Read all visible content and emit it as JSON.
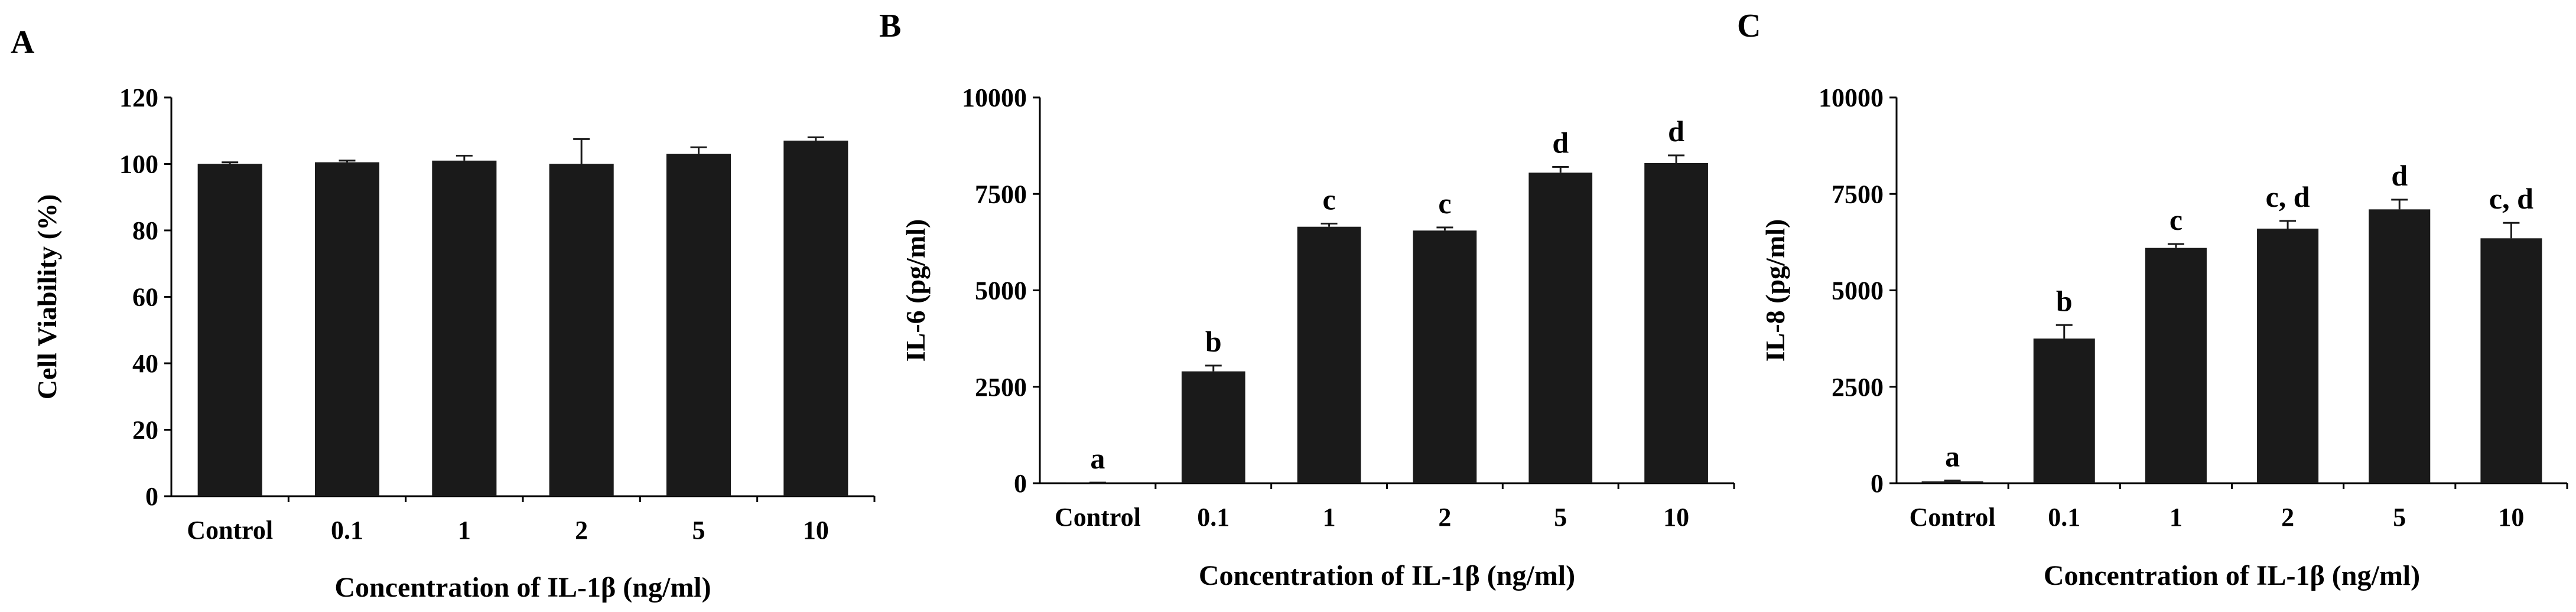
{
  "chart_data": [
    {
      "type": "bar",
      "panel": "A",
      "title": "",
      "xlabel": "Concentration of IL-1β (ng/ml)",
      "ylabel": "Cell Viability (%)",
      "ylim": [
        0,
        120
      ],
      "yticks": [
        "0",
        "20",
        "40",
        "60",
        "80",
        "100",
        "120"
      ],
      "categories": [
        "Control",
        "0.1",
        "1",
        "2",
        "5",
        "10"
      ],
      "values": [
        100,
        100.5,
        101,
        100,
        103,
        107
      ],
      "errors": [
        0.5,
        0.5,
        1.5,
        7.5,
        2,
        1
      ],
      "bar_color": "#1a1a1a",
      "grid": false
    },
    {
      "type": "bar",
      "panel": "B",
      "title": "",
      "xlabel": "Concentration of IL-1β (ng/ml)",
      "ylabel": "IL-6 (pg/ml)",
      "ylim": [
        0,
        10000
      ],
      "yticks": [
        "0",
        "2500",
        "5000",
        "7500",
        "10000"
      ],
      "categories": [
        "Control",
        "0.1",
        "1",
        "2",
        "5",
        "10"
      ],
      "values": [
        10,
        2900,
        6650,
        6550,
        8050,
        8300
      ],
      "errors": [
        5,
        150,
        80,
        80,
        150,
        200
      ],
      "significance": [
        "a",
        "b",
        "c",
        "c",
        "d",
        "d"
      ],
      "bar_color": "#1a1a1a",
      "grid": false
    },
    {
      "type": "bar",
      "panel": "C",
      "title": "",
      "xlabel": "Concentration of IL-1β (ng/ml)",
      "ylabel": "IL-8 (pg/ml)",
      "ylim": [
        0,
        10000
      ],
      "yticks": [
        "0",
        "2500",
        "5000",
        "7500",
        "10000"
      ],
      "categories": [
        "Control",
        "0.1",
        "1",
        "2",
        "5",
        "10"
      ],
      "values": [
        50,
        3750,
        6100,
        6600,
        7100,
        6350
      ],
      "errors": [
        20,
        350,
        100,
        200,
        250,
        400
      ],
      "significance": [
        "a",
        "b",
        "c",
        "c, d",
        "d",
        "c, d"
      ],
      "bar_color": "#1a1a1a",
      "grid": false
    }
  ]
}
